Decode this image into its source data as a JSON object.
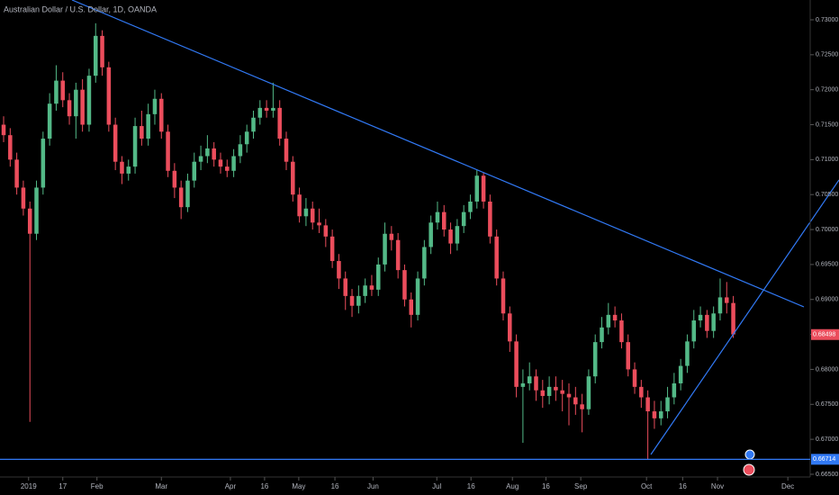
{
  "chart_data": {
    "type": "candlestick",
    "title": "Australian Dollar / U.S. Dollar, 1D, OANDA",
    "up_color": "#53b987",
    "down_color": "#eb4d5c",
    "line_color": "#3179f5",
    "xlim": [
      -0.55,
      122.7
    ],
    "ylim": [
      0.66461,
      0.73283
    ],
    "xticks": [
      {
        "value": 3.8,
        "label": "2019"
      },
      {
        "value": 9.0,
        "label": "17"
      },
      {
        "value": 14.2,
        "label": "Feb"
      },
      {
        "value": 24.0,
        "label": "Mar"
      },
      {
        "value": 34.5,
        "label": "Apr"
      },
      {
        "value": 39.7,
        "label": "16"
      },
      {
        "value": 44.9,
        "label": "May"
      },
      {
        "value": 50.4,
        "label": "16"
      },
      {
        "value": 56.2,
        "label": "Jun"
      },
      {
        "value": 65.9,
        "label": "Jul"
      },
      {
        "value": 71.1,
        "label": "16"
      },
      {
        "value": 77.4,
        "label": "Aug"
      },
      {
        "value": 82.5,
        "label": "16"
      },
      {
        "value": 87.8,
        "label": "Sep"
      },
      {
        "value": 97.8,
        "label": "Oct"
      },
      {
        "value": 103.3,
        "label": "16"
      },
      {
        "value": 108.6,
        "label": "Nov"
      },
      {
        "value": 119.3,
        "label": "Dec"
      }
    ],
    "yticks": [
      {
        "value": 0.665,
        "label": "0.66500"
      },
      {
        "value": 0.67,
        "label": "0.67000"
      },
      {
        "value": 0.675,
        "label": "0.67500"
      },
      {
        "value": 0.68,
        "label": "0.68000"
      },
      {
        "value": 0.685,
        "label": "0.68500"
      },
      {
        "value": 0.69,
        "label": "0.69000"
      },
      {
        "value": 0.695,
        "label": "0.69500"
      },
      {
        "value": 0.7,
        "label": "0.70000"
      },
      {
        "value": 0.705,
        "label": "0.70500"
      },
      {
        "value": 0.71,
        "label": "0.71000"
      },
      {
        "value": 0.715,
        "label": "0.71500"
      },
      {
        "value": 0.72,
        "label": "0.72000"
      },
      {
        "value": 0.725,
        "label": "0.72500"
      },
      {
        "value": 0.73,
        "label": "0.73000"
      }
    ],
    "last_price": 0.68498,
    "support_level": 0.66714,
    "x": [
      0,
      1,
      2,
      3,
      4,
      5,
      6,
      7,
      8,
      9,
      10,
      11,
      12,
      13,
      14,
      15,
      16,
      17,
      18,
      19,
      20,
      21,
      22,
      23,
      24,
      25,
      26,
      27,
      28,
      29,
      30,
      31,
      32,
      33,
      34,
      35,
      36,
      37,
      38,
      39,
      40,
      41,
      42,
      43,
      44,
      45,
      46,
      47,
      48,
      49,
      50,
      51,
      52,
      53,
      54,
      55,
      56,
      57,
      58,
      59,
      60,
      61,
      62,
      63,
      64,
      65,
      66,
      67,
      68,
      69,
      70,
      71,
      72,
      73,
      74,
      75,
      76,
      77,
      78,
      79,
      80,
      81,
      82,
      83,
      84,
      85,
      86,
      87,
      88,
      89,
      90,
      91,
      92,
      93,
      94,
      95,
      96,
      97,
      98,
      99,
      100,
      101,
      102,
      103,
      104,
      105,
      106,
      107,
      108,
      109,
      110,
      111
    ],
    "open": [
      0.715,
      0.7135,
      0.71,
      0.706,
      0.703,
      0.6994,
      0.706,
      0.713,
      0.718,
      0.7213,
      0.7185,
      0.7162,
      0.72,
      0.715,
      0.722,
      0.7277,
      0.7232,
      0.715,
      0.7097,
      0.708,
      0.709,
      0.7148,
      0.713,
      0.7165,
      0.7187,
      0.714,
      0.7084,
      0.706,
      0.7032,
      0.707,
      0.7097,
      0.7105,
      0.7116,
      0.71,
      0.709,
      0.7084,
      0.7105,
      0.7122,
      0.714,
      0.716,
      0.7174,
      0.717,
      0.7174,
      0.713,
      0.7097,
      0.705,
      0.7019,
      0.703,
      0.701,
      0.7006,
      0.699,
      0.6955,
      0.693,
      0.6905,
      0.6891,
      0.6905,
      0.692,
      0.6914,
      0.695,
      0.6994,
      0.6985,
      0.6942,
      0.69,
      0.6878,
      0.693,
      0.6975,
      0.701,
      0.7025,
      0.7,
      0.698,
      0.7005,
      0.7025,
      0.704,
      0.7077,
      0.704,
      0.699,
      0.693,
      0.688,
      0.684,
      0.6775,
      0.678,
      0.679,
      0.677,
      0.6762,
      0.6775,
      0.677,
      0.6765,
      0.676,
      0.675,
      0.6743,
      0.679,
      0.6839,
      0.686,
      0.6878,
      0.687,
      0.6839,
      0.68,
      0.6775,
      0.676,
      0.674,
      0.673,
      0.674,
      0.676,
      0.678,
      0.6805,
      0.684,
      0.687,
      0.6878,
      0.6855,
      0.688,
      0.6903,
      0.6895
    ],
    "high": [
      0.7162,
      0.7145,
      0.711,
      0.707,
      0.704,
      0.707,
      0.714,
      0.7195,
      0.7235,
      0.7225,
      0.7195,
      0.721,
      0.7215,
      0.723,
      0.7295,
      0.7285,
      0.724,
      0.716,
      0.7105,
      0.71,
      0.716,
      0.717,
      0.718,
      0.72,
      0.7195,
      0.715,
      0.7095,
      0.707,
      0.708,
      0.711,
      0.712,
      0.7135,
      0.7125,
      0.711,
      0.71,
      0.7115,
      0.7135,
      0.715,
      0.717,
      0.7185,
      0.7185,
      0.721,
      0.7185,
      0.714,
      0.7105,
      0.706,
      0.7045,
      0.704,
      0.703,
      0.7015,
      0.7,
      0.6965,
      0.694,
      0.6915,
      0.692,
      0.693,
      0.6935,
      0.696,
      0.701,
      0.7005,
      0.6995,
      0.695,
      0.691,
      0.694,
      0.6985,
      0.702,
      0.704,
      0.7035,
      0.701,
      0.7015,
      0.7035,
      0.705,
      0.7085,
      0.7082,
      0.705,
      0.7,
      0.694,
      0.689,
      0.685,
      0.68,
      0.681,
      0.68,
      0.6785,
      0.679,
      0.679,
      0.6785,
      0.678,
      0.6775,
      0.6765,
      0.68,
      0.685,
      0.6875,
      0.6895,
      0.689,
      0.688,
      0.685,
      0.681,
      0.6785,
      0.677,
      0.6755,
      0.6755,
      0.6775,
      0.6795,
      0.6815,
      0.685,
      0.6885,
      0.689,
      0.6885,
      0.689,
      0.693,
      0.6925,
      0.6905
    ],
    "low": [
      0.7125,
      0.709,
      0.705,
      0.702,
      0.6725,
      0.6985,
      0.705,
      0.712,
      0.717,
      0.7175,
      0.715,
      0.713,
      0.714,
      0.714,
      0.721,
      0.722,
      0.714,
      0.7085,
      0.7065,
      0.707,
      0.708,
      0.712,
      0.712,
      0.715,
      0.713,
      0.7075,
      0.7045,
      0.7015,
      0.7025,
      0.706,
      0.7085,
      0.7095,
      0.709,
      0.708,
      0.7075,
      0.7075,
      0.7095,
      0.711,
      0.713,
      0.715,
      0.716,
      0.716,
      0.712,
      0.7085,
      0.704,
      0.701,
      0.7005,
      0.7,
      0.6995,
      0.6975,
      0.6945,
      0.6915,
      0.6885,
      0.6875,
      0.688,
      0.6895,
      0.6905,
      0.6905,
      0.694,
      0.697,
      0.693,
      0.689,
      0.686,
      0.687,
      0.692,
      0.6965,
      0.7,
      0.699,
      0.6965,
      0.697,
      0.6995,
      0.7015,
      0.703,
      0.703,
      0.698,
      0.692,
      0.687,
      0.6825,
      0.676,
      0.6695,
      0.677,
      0.6755,
      0.6745,
      0.675,
      0.6755,
      0.674,
      0.672,
      0.6735,
      0.671,
      0.6735,
      0.678,
      0.683,
      0.685,
      0.686,
      0.683,
      0.679,
      0.6765,
      0.6745,
      0.6671,
      0.6715,
      0.672,
      0.673,
      0.675,
      0.677,
      0.6795,
      0.683,
      0.686,
      0.6845,
      0.6845,
      0.687,
      0.688,
      0.6845
    ],
    "close": [
      0.7135,
      0.71,
      0.706,
      0.703,
      0.6994,
      0.706,
      0.713,
      0.718,
      0.7213,
      0.7185,
      0.7162,
      0.72,
      0.715,
      0.722,
      0.7277,
      0.7232,
      0.715,
      0.7097,
      0.708,
      0.709,
      0.7148,
      0.713,
      0.7165,
      0.7187,
      0.714,
      0.7084,
      0.706,
      0.7032,
      0.707,
      0.7097,
      0.7105,
      0.7116,
      0.71,
      0.709,
      0.7084,
      0.7105,
      0.7122,
      0.714,
      0.716,
      0.7174,
      0.717,
      0.7174,
      0.713,
      0.7097,
      0.705,
      0.7019,
      0.703,
      0.701,
      0.7006,
      0.699,
      0.6955,
      0.693,
      0.6905,
      0.6891,
      0.6905,
      0.692,
      0.6914,
      0.695,
      0.6994,
      0.6985,
      0.6942,
      0.69,
      0.6878,
      0.693,
      0.6975,
      0.701,
      0.7025,
      0.7,
      0.698,
      0.7005,
      0.7025,
      0.704,
      0.7077,
      0.704,
      0.699,
      0.693,
      0.688,
      0.684,
      0.6775,
      0.678,
      0.679,
      0.677,
      0.6762,
      0.6775,
      0.677,
      0.6765,
      0.676,
      0.675,
      0.6743,
      0.679,
      0.6839,
      0.686,
      0.6878,
      0.687,
      0.6839,
      0.68,
      0.6775,
      0.676,
      0.674,
      0.673,
      0.674,
      0.676,
      0.678,
      0.6805,
      0.684,
      0.687,
      0.6878,
      0.6855,
      0.688,
      0.6903,
      0.6895,
      0.685
    ]
  }
}
